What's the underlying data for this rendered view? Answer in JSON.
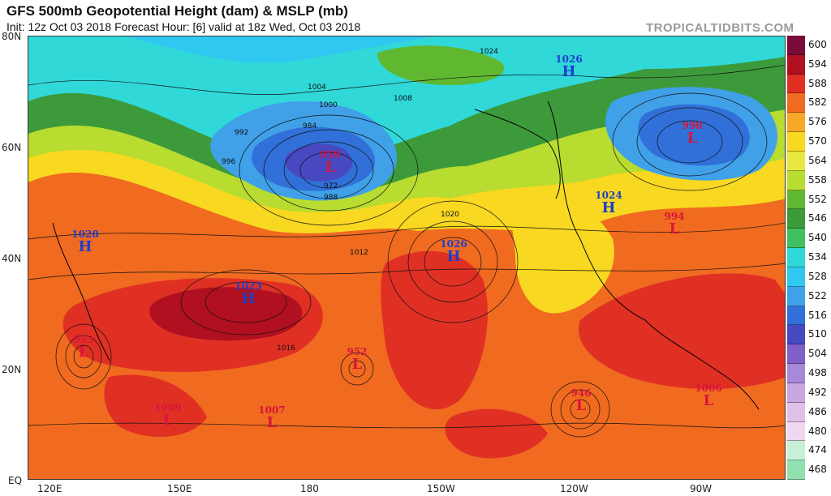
{
  "header": {
    "title": "GFS 500mb Geopotential Height (dam) & MSLP (mb)",
    "subtitle": "Init: 12z Oct 03 2018   Forecast Hour: [6]   valid at 18z Wed, Oct 03 2018",
    "brand": "TROPICALTIDBITS.COM"
  },
  "axes": {
    "lat_labels": [
      "80N",
      "60N",
      "40N",
      "20N",
      "EQ"
    ],
    "lon_labels": [
      "120E",
      "150E",
      "180",
      "150W",
      "120W",
      "90W"
    ]
  },
  "colorbar": {
    "labels": [
      "600",
      "594",
      "588",
      "582",
      "576",
      "570",
      "564",
      "558",
      "552",
      "546",
      "540",
      "534",
      "528",
      "522",
      "516",
      "510",
      "504",
      "498",
      "492",
      "486",
      "480",
      "474",
      "468"
    ],
    "colors": [
      "#7a0a3a",
      "#b01020",
      "#e03024",
      "#f06a20",
      "#f8a828",
      "#f8d820",
      "#e8e840",
      "#b8dc30",
      "#60b830",
      "#3c9a3a",
      "#40c060",
      "#30d8d8",
      "#30c8f0",
      "#40a0e8",
      "#3070d8",
      "#4848c0",
      "#8060c8",
      "#a888d8",
      "#c8a8e0",
      "#e0c0e8",
      "#f0d8f0",
      "#c8f0d8",
      "#90e0b0"
    ]
  },
  "systems": [
    {
      "type": "L",
      "value": "959",
      "label": "L"
    },
    {
      "type": "L",
      "value": "998",
      "label": "L"
    },
    {
      "type": "L",
      "value": "994",
      "label": "L"
    },
    {
      "type": "L",
      "value": "953",
      "label": "L"
    },
    {
      "type": "L",
      "value": "952",
      "label": "L"
    },
    {
      "type": "L",
      "value": "946",
      "label": "L"
    },
    {
      "type": "L",
      "value": "1009",
      "label": "L"
    },
    {
      "type": "L",
      "value": "1007",
      "label": "L"
    },
    {
      "type": "L",
      "value": "1006",
      "label": "L"
    },
    {
      "type": "H",
      "value": "1026",
      "label": "H"
    },
    {
      "type": "H",
      "value": "1024",
      "label": "H"
    },
    {
      "type": "H",
      "value": "1028",
      "label": "H"
    },
    {
      "type": "H",
      "value": "1023",
      "label": "H"
    },
    {
      "type": "H",
      "value": "1026",
      "label": "H"
    }
  ],
  "isobar_labels": [
    "1024",
    "1020",
    "1016",
    "1012",
    "1008",
    "1004",
    "1000",
    "996",
    "992",
    "988",
    "984",
    "972"
  ]
}
